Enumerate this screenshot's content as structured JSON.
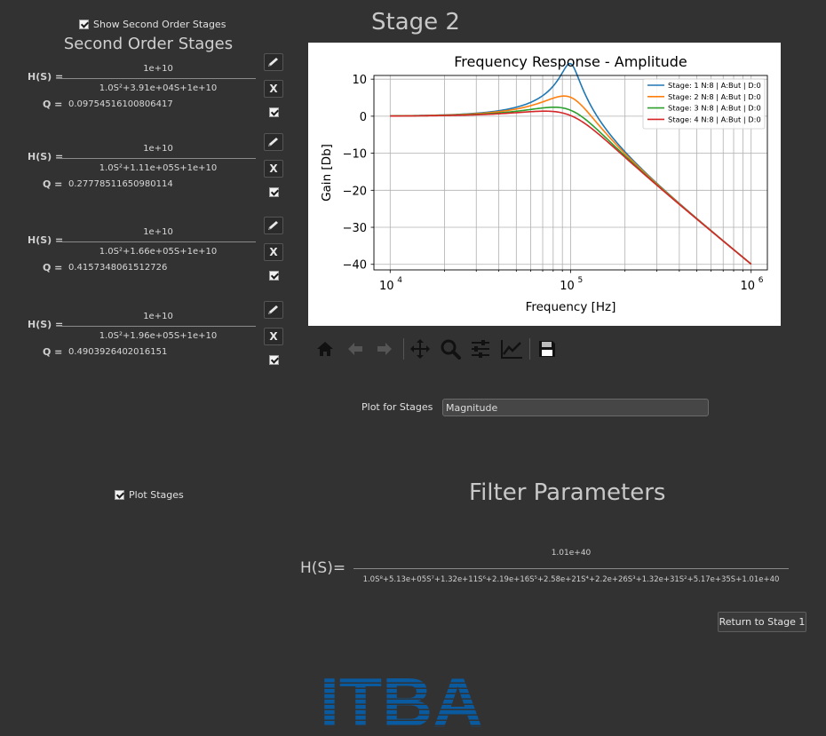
{
  "header": {
    "show_second_order_label": "Show Second Order Stages",
    "stage_title": "Stage 2"
  },
  "second_order": {
    "title": "Second Order Stages",
    "hs_label": "H(S) =",
    "q_label": "Q =",
    "delete_label": "X",
    "stages": [
      {
        "numerator": "1e+10",
        "denominator": "1.0S²+3.91e+04S+1e+10",
        "q": "0.09754516100806417",
        "checked": true
      },
      {
        "numerator": "1e+10",
        "denominator": "1.0S²+1.11e+05S+1e+10",
        "q": "0.27778511650980114",
        "checked": true
      },
      {
        "numerator": "1e+10",
        "denominator": "1.0S²+1.66e+05S+1e+10",
        "q": "0.4157348061512726",
        "checked": true
      },
      {
        "numerator": "1e+10",
        "denominator": "1.0S²+1.96e+05S+1e+10",
        "q": "0.4903926402016151",
        "checked": true
      }
    ]
  },
  "plot_controls": {
    "plot_for_stages_label": "Plot for Stages",
    "plot_for_stages_value": "Magnitude",
    "plot_stages_label": "Plot Stages"
  },
  "toolbar_icons": [
    "home-icon",
    "back-arrow-icon",
    "forward-arrow-icon",
    "pan-icon",
    "zoom-icon",
    "configure-subplots-icon",
    "edit-axis-icon",
    "save-icon"
  ],
  "filter": {
    "title": "Filter Parameters",
    "hs_label": "H(S)=",
    "numerator": "1.01e+40",
    "denominator": "1.0S⁸+5.13e+05S⁷+1.32e+11S⁶+2.19e+16S⁵+2.58e+21S⁴+2.2e+26S³+1.32e+31S²+5.17e+35S+1.01e+40"
  },
  "return_button": "Return to Stage 1",
  "logo": {
    "text": "ITBA",
    "color": "#0a5aa0"
  },
  "chart_data": {
    "type": "line",
    "title": "Frequency Response - Amplitude",
    "xlabel": "Frequency [Hz]",
    "ylabel": "Gain [Db]",
    "xscale": "log",
    "xlim": [
      10000,
      1000000
    ],
    "ylim": [
      -41.5,
      11
    ],
    "x_ticks": [
      10000,
      100000,
      1000000
    ],
    "x_tick_labels": [
      "10",
      "10",
      "10"
    ],
    "x_tick_exponents": [
      "4",
      "5",
      "6"
    ],
    "y_ticks": [
      10,
      0,
      -10,
      -20,
      -30,
      -40
    ],
    "y_tick_labels": [
      "10",
      "0",
      "−10",
      "−20",
      "−30",
      "−40"
    ],
    "grid": true,
    "legend_position": "top-right",
    "series": [
      {
        "name": "Stage: 1 N:8 | A:But | D:0",
        "color": "#1f77b4",
        "zeta": 0.0975
      },
      {
        "name": "Stage: 2 N:8 | A:But | D:0",
        "color": "#ff7f0e",
        "zeta": 0.2778
      },
      {
        "name": "Stage: 3 N:8 | A:But | D:0",
        "color": "#2ca02c",
        "zeta": 0.4157
      },
      {
        "name": "Stage: 4 N:8 | A:But | D:0",
        "color": "#d62728",
        "zeta": 0.4904
      }
    ]
  }
}
